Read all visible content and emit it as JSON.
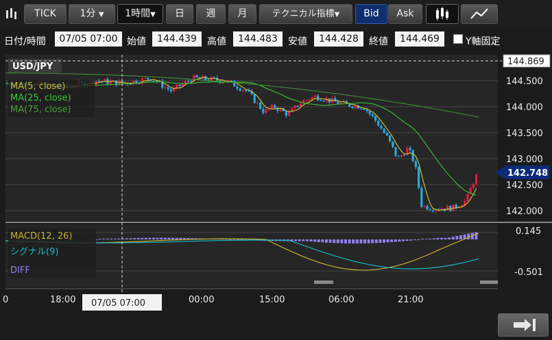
{
  "toolbar": {
    "tick_label": "TICK",
    "minute_label": "1分",
    "hour_label": "1時間",
    "day_label": "日",
    "week_label": "週",
    "month_label": "月",
    "technical_label": "テクニカル指標",
    "bid_label": "Bid",
    "ask_label": "Ask",
    "icons": [
      "bars-icon",
      "candlestick-icon",
      "line-chart-icon"
    ]
  },
  "ohlc_bar": {
    "datetime_label": "日付/時間",
    "datetime_value": "07/05 07:00",
    "open_label": "始値",
    "open_value": "144.439",
    "high_label": "高値",
    "high_value": "144.483",
    "low_label": "安値",
    "low_value": "144.428",
    "close_label": "終値",
    "close_value": "144.469",
    "y_fixed_label": "Y軸固定"
  },
  "main_chart": {
    "symbol": "USD/JPY",
    "legend": [
      "MA(5, close)",
      "MA(25, close)",
      "MA(75, close)"
    ],
    "y_ticks": [
      "144.500",
      "144.000",
      "143.500",
      "143.000",
      "142.500",
      "142.000"
    ],
    "high_marker": "144.869",
    "current_price": "142.748",
    "colors": {
      "up": "#e8193c",
      "down": "#29a8e0",
      "ma5": "#c8c040",
      "ma25": "#38b838",
      "ma75": "#3a8a30",
      "current": "#0b2a78"
    }
  },
  "macd_chart": {
    "legend": [
      "MACD(12, 26)",
      "シグナル(9)",
      "DIFF"
    ],
    "y_ticks": [
      "0.145",
      "-0.501"
    ],
    "colors": {
      "macd": "#c8b030",
      "signal": "#18b8c8",
      "diff": "#8f80ee"
    }
  },
  "x_axis": {
    "ticks": [
      "0",
      "18:00",
      "00:00",
      "15:00",
      "06:00",
      "21:00"
    ],
    "crosshair_label": "07/05 07:00"
  }
}
